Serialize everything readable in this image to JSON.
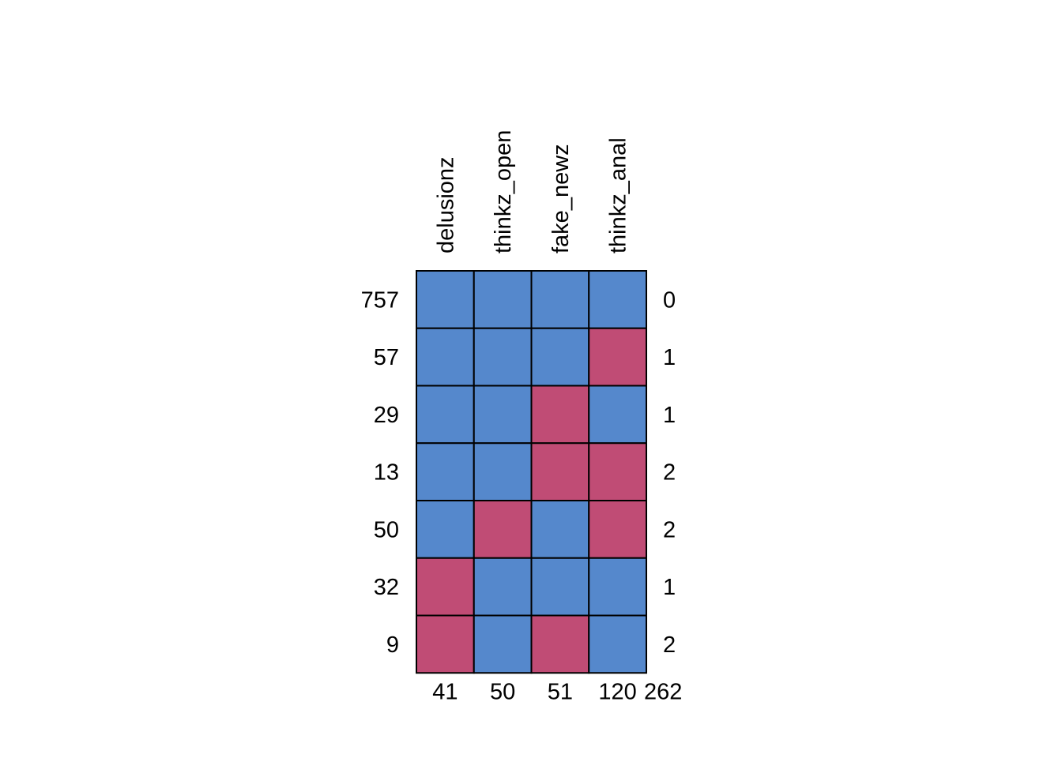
{
  "chart_data": {
    "type": "heatmap",
    "title": "",
    "variables": [
      "delusionz",
      "thinkz_open",
      "fake_newz",
      "thinkz_anal"
    ],
    "patterns": [
      {
        "count": 757,
        "missing": [
          0,
          0,
          0,
          0
        ],
        "n_missing": 0
      },
      {
        "count": 57,
        "missing": [
          0,
          0,
          0,
          1
        ],
        "n_missing": 1
      },
      {
        "count": 29,
        "missing": [
          0,
          0,
          1,
          0
        ],
        "n_missing": 1
      },
      {
        "count": 13,
        "missing": [
          0,
          0,
          1,
          1
        ],
        "n_missing": 2
      },
      {
        "count": 50,
        "missing": [
          0,
          1,
          0,
          1
        ],
        "n_missing": 2
      },
      {
        "count": 32,
        "missing": [
          1,
          0,
          0,
          0
        ],
        "n_missing": 1
      },
      {
        "count": 9,
        "missing": [
          1,
          0,
          1,
          0
        ],
        "n_missing": 2
      }
    ],
    "column_missing_totals": [
      41,
      50,
      51,
      120
    ],
    "total_missing": 262,
    "legend": "none",
    "grid": false
  },
  "colors": {
    "observed": "#5588cc",
    "missing": "#c04c75",
    "border": "#000000",
    "text": "#000000",
    "background": "#ffffff"
  }
}
